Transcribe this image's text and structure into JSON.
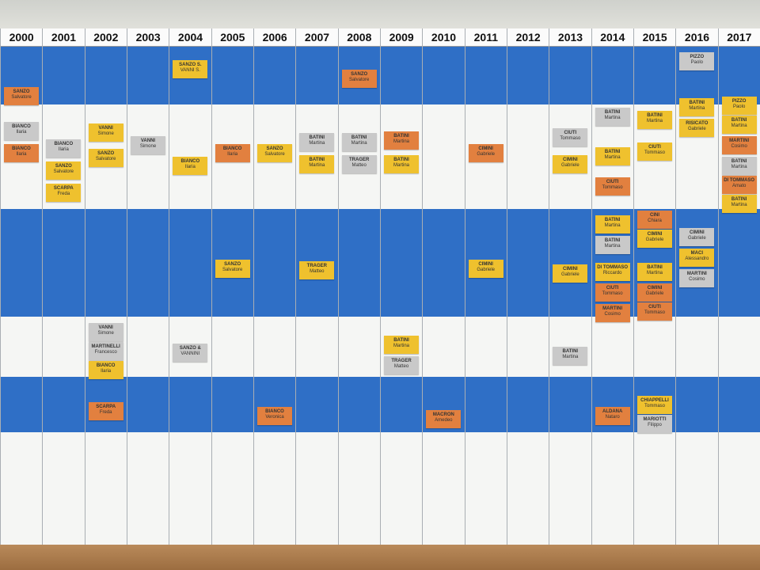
{
  "board": {
    "columns": [
      {
        "year": "2000",
        "cards": [
          {
            "surname": "SANZO",
            "first": "Salvatore",
            "color": "#e2803f"
          },
          {
            "surname": "BIANCO",
            "first": "Ilaria",
            "color": "#c9c9c9"
          },
          {
            "surname": "BIANCO",
            "first": "Ilaria",
            "color": "#e2803f"
          }
        ]
      },
      {
        "year": "2001",
        "cards": [
          {
            "surname": "BIANCO",
            "first": "Ilaria",
            "color": "#c9c9c9"
          },
          {
            "surname": "SANZO",
            "first": "Salvatore",
            "color": "#efc12e"
          },
          {
            "surname": "SCARPA",
            "first": "Freda",
            "color": "#efc12e"
          }
        ]
      },
      {
        "year": "2002",
        "cards": [
          {
            "surname": "VANNI",
            "first": "Simone",
            "color": "#efc12e"
          },
          {
            "surname": "SANZO",
            "first": "Salvatore",
            "color": "#efc12e"
          },
          {
            "surname": "VANNI",
            "first": "Simone",
            "color": "#c9c9c9"
          },
          {
            "surname": "MARTINELLI",
            "first": "Francesco",
            "color": "#c9c9c9"
          },
          {
            "surname": "BIANCO",
            "first": "Ilaria",
            "color": "#efc12e"
          },
          {
            "surname": "SCARPA",
            "first": "Freda",
            "color": "#e2803f"
          }
        ]
      },
      {
        "year": "2003",
        "cards": [
          {
            "surname": "VANNI",
            "first": "Simone",
            "color": "#c9c9c9"
          }
        ]
      },
      {
        "year": "2004",
        "cards": [
          {
            "surname": "SANZO S.",
            "first": "VANNI S.",
            "color": "#efc12e"
          },
          {
            "surname": "BIANCO",
            "first": "Ilaria",
            "color": "#efc12e"
          },
          {
            "surname": "SANZO &",
            "first": "VANNINI",
            "color": "#c9c9c9"
          }
        ]
      },
      {
        "year": "2005",
        "cards": [
          {
            "surname": "BIANCO",
            "first": "Ilaria",
            "color": "#e2803f"
          },
          {
            "surname": "SANZO",
            "first": "Salvatore",
            "color": "#efc12e"
          }
        ]
      },
      {
        "year": "2006",
        "cards": [
          {
            "surname": "SANZO",
            "first": "Salvatore",
            "color": "#efc12e"
          },
          {
            "surname": "BIANCO",
            "first": "Veronica",
            "color": "#e2803f"
          }
        ]
      },
      {
        "year": "2007",
        "cards": [
          {
            "surname": "BATINI",
            "first": "Martina",
            "color": "#c9c9c9"
          },
          {
            "surname": "BATINI",
            "first": "Martina",
            "color": "#efc12e"
          },
          {
            "surname": "TRAGER",
            "first": "Matteo",
            "color": "#efc12e"
          }
        ]
      },
      {
        "year": "2008",
        "cards": [
          {
            "surname": "SANZO",
            "first": "Salvatore",
            "color": "#e2803f"
          },
          {
            "surname": "BATINI",
            "first": "Martina",
            "color": "#c9c9c9"
          },
          {
            "surname": "TRAGER",
            "first": "Matteo",
            "color": "#c9c9c9"
          }
        ]
      },
      {
        "year": "2009",
        "cards": [
          {
            "surname": "BATINI",
            "first": "Martina",
            "color": "#e2803f"
          },
          {
            "surname": "BATINI",
            "first": "Martina",
            "color": "#efc12e"
          },
          {
            "surname": "BATINI",
            "first": "Martina",
            "color": "#efc12e"
          },
          {
            "surname": "TRAGER",
            "first": "Matteo",
            "color": "#c9c9c9"
          }
        ]
      },
      {
        "year": "2010",
        "cards": [
          {
            "surname": "MACRON",
            "first": "Amedeo",
            "color": "#e2803f"
          }
        ]
      },
      {
        "year": "2011",
        "cards": [
          {
            "surname": "CIMINI",
            "first": "Gabriele",
            "color": "#e2803f"
          },
          {
            "surname": "CIMINI",
            "first": "Gabriele",
            "color": "#efc12e"
          }
        ]
      },
      {
        "year": "2012",
        "cards": []
      },
      {
        "year": "2013",
        "cards": [
          {
            "surname": "CIUTI",
            "first": "Tommaso",
            "color": "#c9c9c9"
          },
          {
            "surname": "CIMINI",
            "first": "Gabriele",
            "color": "#efc12e"
          },
          {
            "surname": "CIMINI",
            "first": "Gabriele",
            "color": "#efc12e"
          },
          {
            "surname": "BATINI",
            "first": "Martina",
            "color": "#c9c9c9"
          }
        ]
      },
      {
        "year": "2014",
        "cards": [
          {
            "surname": "BATINI",
            "first": "Martina",
            "color": "#c9c9c9"
          },
          {
            "surname": "BATINI",
            "first": "Martina",
            "color": "#efc12e"
          },
          {
            "surname": "CIUTI",
            "first": "Tommaso",
            "color": "#e2803f"
          },
          {
            "surname": "BATINI",
            "first": "Martina",
            "color": "#efc12e"
          },
          {
            "surname": "BATINI",
            "first": "Martina",
            "color": "#c9c9c9"
          },
          {
            "surname": "DI TOMMASO",
            "first": "Riccardo",
            "color": "#efc12e"
          },
          {
            "surname": "CIUTI",
            "first": "Tommaso",
            "color": "#e2803f"
          },
          {
            "surname": "MARTINI",
            "first": "Cosimo",
            "color": "#e2803f"
          },
          {
            "surname": "ALDANA",
            "first": "Nataro",
            "color": "#e2803f"
          }
        ]
      },
      {
        "year": "2015",
        "cards": [
          {
            "surname": "BATINI",
            "first": "Martina",
            "color": "#efc12e"
          },
          {
            "surname": "CIUTI",
            "first": "Tommaso",
            "color": "#efc12e"
          },
          {
            "surname": "CINI",
            "first": "Chiara",
            "color": "#e2803f"
          },
          {
            "surname": "CIMINI",
            "first": "Gabriele",
            "color": "#efc12e"
          },
          {
            "surname": "BATINI",
            "first": "Martina",
            "color": "#efc12e"
          },
          {
            "surname": "CIMINI",
            "first": "Gabriele",
            "color": "#e2803f"
          },
          {
            "surname": "CIUTI",
            "first": "Tommaso",
            "color": "#e2803f"
          },
          {
            "surname": "CHIAPPELLI",
            "first": "Tommaso",
            "color": "#efc12e"
          },
          {
            "surname": "MARIOTTI",
            "first": "Filippo",
            "color": "#c9c9c9"
          }
        ]
      },
      {
        "year": "2016",
        "cards": [
          {
            "surname": "PIZZO",
            "first": "Paolo",
            "color": "#c9c9c9"
          },
          {
            "surname": "BATINI",
            "first": "Martina",
            "color": "#efc12e"
          },
          {
            "surname": "RISICATO",
            "first": "Gabriele",
            "color": "#efc12e"
          },
          {
            "surname": "CIMINI",
            "first": "Gabriele",
            "color": "#c9c9c9"
          },
          {
            "surname": "MACI",
            "first": "Alessandro",
            "color": "#efc12e"
          },
          {
            "surname": "MARTINI",
            "first": "Cosimo",
            "color": "#c9c9c9"
          }
        ]
      },
      {
        "year": "2017",
        "cards": [
          {
            "surname": "PIZZO",
            "first": "Paolo",
            "color": "#efc12e"
          },
          {
            "surname": "BATINI",
            "first": "Martina",
            "color": "#efc12e"
          },
          {
            "surname": "MARTINI",
            "first": "Cosimo",
            "color": "#e2803f"
          },
          {
            "surname": "BATINI",
            "first": "Martina",
            "color": "#c9c9c9"
          },
          {
            "surname": "DI TOMMASO",
            "first": "Amato",
            "color": "#e2803f"
          },
          {
            "surname": "BATINI",
            "first": "Martina",
            "color": "#efc12e"
          }
        ]
      }
    ]
  }
}
